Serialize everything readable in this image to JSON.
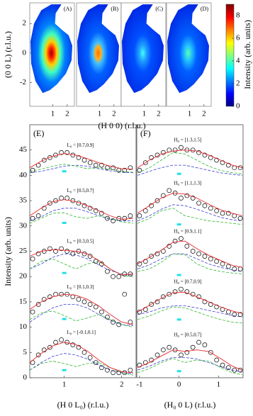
{
  "chart_data": [
    {
      "type": "heatmap",
      "panel_labels": [
        "(A)",
        "(B)",
        "(C)",
        "(D)"
      ],
      "xlabel": "(H 0 0) (r.l.u.)",
      "ylabel": "(0 0 L) (r.l.u.)",
      "colorbar_label": "Intensity (arb. units)",
      "xlim": [
        -0.6,
        2.5
      ],
      "ylim": [
        -3.6,
        3.4
      ],
      "xticks": [
        1,
        2
      ],
      "yticks": [
        -2,
        0,
        2
      ],
      "clim": [
        0,
        9
      ],
      "cticks": [
        0,
        2,
        4,
        6,
        8
      ]
    },
    {
      "type": "line",
      "panel_label": "(E)",
      "xlabel": "(H 0 L₀) (r.l.u.)",
      "ylabel": "Intensity (arb. units)",
      "xlim": [
        0.4,
        2.25
      ],
      "ylim": [
        0,
        50
      ],
      "xticks": [
        1,
        2
      ],
      "yticks": [
        0,
        5,
        10,
        15,
        20,
        25,
        30,
        35,
        40,
        45
      ],
      "colors": {
        "points": "#000000",
        "fit": "#e8262a",
        "component": "#2fb82f",
        "background": "#3a3ad6",
        "marker": "#22e0e8"
      },
      "point_x": [
        0.45,
        0.55,
        0.65,
        0.75,
        0.85,
        0.95,
        1.05,
        1.15,
        1.25,
        1.35,
        1.45,
        1.55,
        1.65,
        1.75,
        1.85,
        1.95,
        2.05,
        2.15
      ],
      "curve_x": [
        0.4,
        0.6,
        0.8,
        1.0,
        1.2,
        1.4,
        1.6,
        1.8,
        2.0,
        2.2
      ],
      "marker_x": 1,
      "groups": [
        {
          "label": "L₀ = [0.7,0.9]",
          "points": [
            41,
            42,
            43,
            43.5,
            44,
            44.5,
            44.5,
            44,
            43.5,
            43,
            42.5,
            42,
            42,
            41.5,
            41.5,
            41,
            41,
            41.5
          ],
          "fit": [
            41.5,
            42.8,
            43.8,
            44.3,
            44,
            43.3,
            42.5,
            41.8,
            41.3,
            41.2
          ],
          "component": [
            40.8,
            41.2,
            41.8,
            42.2,
            41.8,
            41.3,
            41.5,
            41.2,
            40.8,
            40.6
          ],
          "background": [
            40.5,
            40.8,
            41.3,
            41.8,
            42,
            41.8,
            41.3,
            40.9,
            40.6,
            40.5
          ],
          "marker": 40.8
        },
        {
          "label": "L₀ = [0.5,0.7]",
          "points": [
            31.5,
            32,
            33.5,
            34.5,
            35,
            35.5,
            35.5,
            35,
            34.5,
            34,
            33.5,
            33,
            32.5,
            31.5,
            31,
            31.5,
            31.5,
            32
          ],
          "fit": [
            32,
            33.5,
            34.8,
            35.2,
            34.8,
            34,
            33,
            32,
            31.3,
            31.5
          ],
          "component": [
            30.5,
            31.5,
            32.5,
            32.6,
            31.8,
            31.5,
            32,
            31.5,
            30.8,
            30.5
          ],
          "background": [
            31,
            31.8,
            33,
            33.5,
            33.5,
            32.8,
            32,
            31.3,
            31,
            31
          ],
          "marker": 30.6
        },
        {
          "label": "L₀ = [0.3,0.5]",
          "points": [
            23.5,
            24.5,
            25,
            25.5,
            25,
            25.5,
            25,
            24.5,
            25,
            24.5,
            24,
            23,
            22.5,
            21,
            20,
            20,
            20.5,
            20.5
          ],
          "fit": [
            24,
            25,
            25.3,
            25.2,
            25,
            24.5,
            23.2,
            21.5,
            20.3,
            20.5
          ],
          "component": [
            21.5,
            23,
            23.5,
            22.5,
            21.5,
            22.5,
            23,
            21.5,
            20.2,
            20
          ],
          "background": [
            21.5,
            22.5,
            23.8,
            24.5,
            24.3,
            23.5,
            22.3,
            21.2,
            20.5,
            20.3
          ],
          "marker": 20.7
        },
        {
          "label": "L₀ = [0.1,0.3]",
          "points": [
            13,
            14.5,
            15.5,
            16,
            16.5,
            16.5,
            16.5,
            16,
            15.5,
            15,
            14.5,
            14,
            13,
            12,
            11,
            10.5,
            16.5,
            11
          ],
          "fit": [
            13.5,
            15,
            16,
            16.5,
            16.3,
            15.5,
            14.2,
            12.5,
            11,
            10.5
          ],
          "component": [
            11.5,
            12.8,
            13.2,
            12.3,
            11.2,
            11.8,
            12.5,
            11.5,
            10.5,
            10
          ],
          "background": [
            11,
            12.5,
            13.8,
            14.5,
            14.5,
            13.8,
            12.5,
            11.3,
            10.5,
            10.3
          ],
          "marker": 11.6
        },
        {
          "label": "L₀ = [-0.1,0.1]",
          "points": [
            3,
            4.5,
            5.5,
            6,
            7,
            7.5,
            7,
            6.5,
            6,
            5,
            4,
            3,
            2,
            1.5,
            1,
            1,
            1,
            1.5
          ],
          "fit": [
            3,
            4.8,
            6.3,
            7,
            6.6,
            5.3,
            3.5,
            2,
            1.2,
            1
          ],
          "component": [
            1.5,
            2.8,
            3.3,
            2.8,
            2.2,
            2.8,
            3,
            2,
            1,
            0.5
          ],
          "background": [
            1.5,
            3,
            4.2,
            4.8,
            4.5,
            3.7,
            2.5,
            1.5,
            1,
            0.8
          ],
          "marker": 1.5
        }
      ]
    },
    {
      "type": "line",
      "panel_label": "(F)",
      "xlabel": "(H₀ 0 L) (r.l.u.)",
      "xlim": [
        -1.07,
        1.62
      ],
      "ylim": [
        0,
        50
      ],
      "xticks": [
        -1,
        0,
        1
      ],
      "colors": {
        "points": "#000000",
        "fit": "#e8262a",
        "component": "#2fb82f",
        "background": "#3a3ad6",
        "marker": "#22e0e8"
      },
      "point_x": [
        -1,
        -0.85,
        -0.7,
        -0.55,
        -0.4,
        -0.25,
        -0.1,
        0.05,
        0.2,
        0.35,
        0.5,
        0.65,
        0.8,
        0.95,
        1.1,
        1.25,
        1.4,
        1.55
      ],
      "curve_x": [
        -1.05,
        -0.75,
        -0.45,
        -0.15,
        0.15,
        0.45,
        0.75,
        1.05,
        1.35,
        1.6
      ],
      "marker_x": 0,
      "groups": [
        {
          "label": "H₀ = [1.3,1.5]",
          "points": [
            41,
            42.5,
            43.5,
            44,
            44.5,
            45,
            45,
            45.5,
            45,
            45,
            44.5,
            44,
            43.5,
            43,
            42.5,
            42,
            41.5,
            41.5
          ],
          "fit": [
            41.5,
            43,
            44.2,
            44.8,
            45,
            44.8,
            44,
            43,
            42,
            41.5
          ],
          "component": [
            40.5,
            41.5,
            43,
            44.5,
            44.2,
            43,
            41.8,
            41,
            40.5,
            40.3
          ],
          "background": [
            40,
            40.8,
            41.5,
            42,
            42,
            41.5,
            41,
            40.5,
            40.2,
            40
          ],
          "marker": 40.3
        },
        {
          "label": "H₀ = [1.1,1.3]",
          "points": [
            32,
            33,
            34,
            35,
            36,
            37,
            36.5,
            35.5,
            36,
            35.5,
            34.5,
            34,
            33.5,
            33,
            32.5,
            32.5,
            32,
            31.5
          ],
          "fit": [
            32.5,
            34,
            35.5,
            36.5,
            36.3,
            35.5,
            34.3,
            33.2,
            32.5,
            32
          ],
          "component": [
            30.5,
            31.5,
            33,
            33.5,
            32,
            31.5,
            31,
            30.8,
            30.5,
            30.3
          ],
          "background": [
            31,
            32,
            33.3,
            34.2,
            34,
            33.3,
            32.5,
            31.7,
            31.2,
            31
          ],
          "marker": 30.3
        },
        {
          "label": "H₀ = [0.9,1.1]",
          "points": [
            22.5,
            23,
            24,
            24.5,
            25,
            26,
            27,
            27.5,
            26,
            25,
            24.5,
            24,
            23.5,
            23,
            22.5,
            22,
            21.5,
            21.5
          ],
          "fit": [
            22.5,
            23.8,
            25.2,
            26.8,
            27,
            25.5,
            24.2,
            23.2,
            22.2,
            21.8
          ],
          "component": [
            21,
            21.5,
            22.8,
            24.5,
            24.3,
            22.5,
            21.5,
            21,
            20.7,
            20.5
          ],
          "background": [
            21.5,
            22.3,
            23.5,
            24.5,
            24.5,
            23.5,
            22.5,
            21.8,
            21.3,
            21
          ],
          "marker": 20.3
        },
        {
          "label": "H₀ = [0.7,0.9]",
          "points": [
            13,
            13.5,
            14.5,
            15,
            16,
            16.5,
            17,
            17.5,
            17,
            16.5,
            16,
            15,
            14.5,
            14,
            13.5,
            13,
            12.5,
            12.5
          ],
          "fit": [
            13,
            14.3,
            15.7,
            16.8,
            16.9,
            16,
            15,
            14,
            13.2,
            12.7
          ],
          "component": [
            11.5,
            12.2,
            13.2,
            14,
            13.8,
            13,
            12.2,
            11.5,
            11,
            10.8
          ],
          "background": [
            12.5,
            13,
            13.8,
            14.2,
            14.2,
            13.8,
            13.3,
            12.8,
            12.3,
            12
          ],
          "marker": 11.5
        },
        {
          "label": "H₀ = [0.5,0.7]",
          "points": [
            2.5,
            3,
            3.5,
            4.5,
            5.5,
            6,
            5.5,
            4.5,
            5,
            6,
            7,
            6.5,
            5,
            3.5,
            2.5,
            2,
            1.5,
            1.5
          ],
          "fit": [
            2,
            3,
            4.3,
            5.5,
            5.2,
            5.5,
            5.2,
            3.8,
            2.3,
            1.5
          ],
          "component": [
            1,
            1.8,
            3,
            3.8,
            3,
            3.5,
            3.3,
            2,
            1,
            0.6
          ],
          "background": [
            1.5,
            2.3,
            3.3,
            4,
            4,
            3.7,
            3,
            2.2,
            1.5,
            1.2
          ],
          "marker": 1.3
        }
      ]
    }
  ]
}
